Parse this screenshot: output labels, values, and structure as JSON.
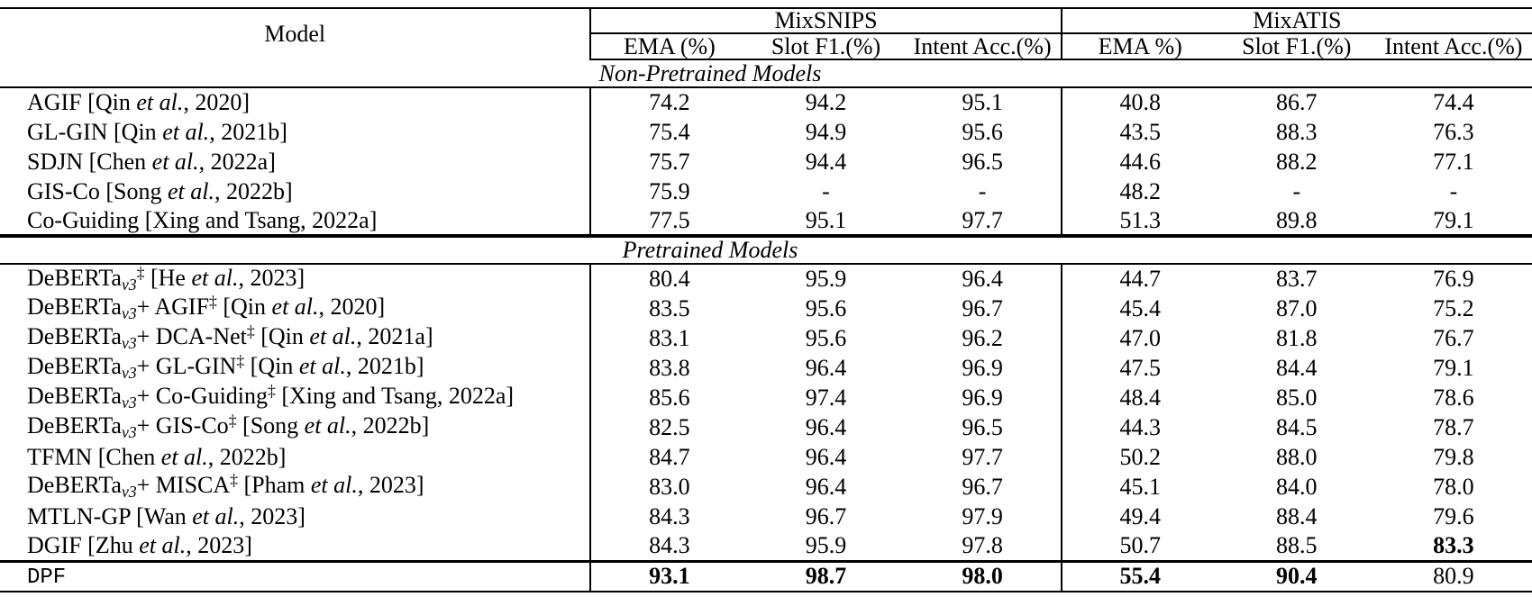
{
  "table": {
    "model_header": "Model",
    "groups": [
      {
        "label": "MixSNIPS",
        "columns": [
          "EMA (%)",
          "Slot F1.(%)",
          "Intent Acc.(%)"
        ]
      },
      {
        "label": "MixATIS",
        "columns": [
          "EMA %)",
          "Slot F1.(%)",
          "Intent Acc.(%)"
        ]
      }
    ],
    "sections": [
      {
        "title": "Non-Pretrained Models",
        "rows": [
          {
            "model": [
              {
                "t": "AGIF [Qin "
              },
              {
                "t": "et al.",
                "s": "i"
              },
              {
                "t": ", 2020]"
              }
            ],
            "values": [
              "74.2",
              "94.2",
              "95.1",
              "40.8",
              "86.7",
              "74.4"
            ],
            "bold": [
              false,
              false,
              false,
              false,
              false,
              false
            ]
          },
          {
            "model": [
              {
                "t": "GL-GIN [Qin "
              },
              {
                "t": "et al.",
                "s": "i"
              },
              {
                "t": ", 2021b]"
              }
            ],
            "values": [
              "75.4",
              "94.9",
              "95.6",
              "43.5",
              "88.3",
              "76.3"
            ],
            "bold": [
              false,
              false,
              false,
              false,
              false,
              false
            ]
          },
          {
            "model": [
              {
                "t": "SDJN [Chen "
              },
              {
                "t": "et al.",
                "s": "i"
              },
              {
                "t": ", 2022a]"
              }
            ],
            "values": [
              "75.7",
              "94.4",
              "96.5",
              "44.6",
              "88.2",
              "77.1"
            ],
            "bold": [
              false,
              false,
              false,
              false,
              false,
              false
            ]
          },
          {
            "model": [
              {
                "t": "GIS-Co [Song "
              },
              {
                "t": "et al.",
                "s": "i"
              },
              {
                "t": ", 2022b]"
              }
            ],
            "values": [
              "75.9",
              "-",
              "-",
              "48.2",
              "-",
              "-"
            ],
            "bold": [
              false,
              false,
              false,
              false,
              false,
              false
            ]
          },
          {
            "model": [
              {
                "t": "Co-Guiding [Xing and Tsang, 2022a]"
              }
            ],
            "values": [
              "77.5",
              "95.1",
              "97.7",
              "51.3",
              "89.8",
              "79.1"
            ],
            "bold": [
              false,
              false,
              false,
              false,
              false,
              false
            ]
          }
        ]
      },
      {
        "title": "Pretrained Models",
        "rows": [
          {
            "model": [
              {
                "t": "DeBERTa"
              },
              {
                "t": "v3",
                "s": "sub"
              },
              {
                "t": "‡",
                "s": "sup"
              },
              {
                "t": " [He "
              },
              {
                "t": "et al.",
                "s": "i"
              },
              {
                "t": ", 2023]"
              }
            ],
            "values": [
              "80.4",
              "95.9",
              "96.4",
              "44.7",
              "83.7",
              "76.9"
            ],
            "bold": [
              false,
              false,
              false,
              false,
              false,
              false
            ]
          },
          {
            "model": [
              {
                "t": "DeBERTa"
              },
              {
                "t": "v3",
                "s": "sub"
              },
              {
                "t": "+ AGIF"
              },
              {
                "t": "‡",
                "s": "sup"
              },
              {
                "t": " [Qin "
              },
              {
                "t": "et al.",
                "s": "i"
              },
              {
                "t": ", 2020]"
              }
            ],
            "values": [
              "83.5",
              "95.6",
              "96.7",
              "45.4",
              "87.0",
              "75.2"
            ],
            "bold": [
              false,
              false,
              false,
              false,
              false,
              false
            ]
          },
          {
            "model": [
              {
                "t": "DeBERTa"
              },
              {
                "t": "v3",
                "s": "sub"
              },
              {
                "t": "+ DCA-Net"
              },
              {
                "t": "‡",
                "s": "sup"
              },
              {
                "t": " [Qin "
              },
              {
                "t": "et al.",
                "s": "i"
              },
              {
                "t": ", 2021a]"
              }
            ],
            "values": [
              "83.1",
              "95.6",
              "96.2",
              "47.0",
              "81.8",
              "76.7"
            ],
            "bold": [
              false,
              false,
              false,
              false,
              false,
              false
            ]
          },
          {
            "model": [
              {
                "t": "DeBERTa"
              },
              {
                "t": "v3",
                "s": "sub"
              },
              {
                "t": "+ GL-GIN"
              },
              {
                "t": "‡",
                "s": "sup"
              },
              {
                "t": " [Qin "
              },
              {
                "t": "et al.",
                "s": "i"
              },
              {
                "t": ", 2021b]"
              }
            ],
            "values": [
              "83.8",
              "96.4",
              "96.9",
              "47.5",
              "84.4",
              "79.1"
            ],
            "bold": [
              false,
              false,
              false,
              false,
              false,
              false
            ]
          },
          {
            "model": [
              {
                "t": "DeBERTa"
              },
              {
                "t": "v3",
                "s": "sub"
              },
              {
                "t": "+ Co-Guiding"
              },
              {
                "t": "‡",
                "s": "sup"
              },
              {
                "t": " [Xing and Tsang, 2022a]"
              }
            ],
            "values": [
              "85.6",
              "97.4",
              "96.9",
              "48.4",
              "85.0",
              "78.6"
            ],
            "bold": [
              false,
              false,
              false,
              false,
              false,
              false
            ]
          },
          {
            "model": [
              {
                "t": "DeBERTa"
              },
              {
                "t": "v3",
                "s": "sub"
              },
              {
                "t": "+ GIS-Co"
              },
              {
                "t": "‡",
                "s": "sup"
              },
              {
                "t": " [Song "
              },
              {
                "t": "et al.",
                "s": "i"
              },
              {
                "t": ", 2022b]"
              }
            ],
            "values": [
              "82.5",
              "96.4",
              "96.5",
              "44.3",
              "84.5",
              "78.7"
            ],
            "bold": [
              false,
              false,
              false,
              false,
              false,
              false
            ]
          },
          {
            "model": [
              {
                "t": "TFMN [Chen "
              },
              {
                "t": "et al.",
                "s": "i"
              },
              {
                "t": ", 2022b]"
              }
            ],
            "values": [
              "84.7",
              "96.4",
              "97.7",
              "50.2",
              "88.0",
              "79.8"
            ],
            "bold": [
              false,
              false,
              false,
              false,
              false,
              false
            ]
          },
          {
            "model": [
              {
                "t": "DeBERTa"
              },
              {
                "t": "v3",
                "s": "sub"
              },
              {
                "t": "+ MISCA"
              },
              {
                "t": "‡",
                "s": "sup"
              },
              {
                "t": " [Pham "
              },
              {
                "t": "et al.",
                "s": "i"
              },
              {
                "t": ", 2023]"
              }
            ],
            "values": [
              "83.0",
              "96.4",
              "96.7",
              "45.1",
              "84.0",
              "78.0"
            ],
            "bold": [
              false,
              false,
              false,
              false,
              false,
              false
            ]
          },
          {
            "model": [
              {
                "t": "MTLN-GP [Wan "
              },
              {
                "t": "et al.",
                "s": "i"
              },
              {
                "t": ", 2023]"
              }
            ],
            "values": [
              "84.3",
              "96.7",
              "97.9",
              "49.4",
              "88.4",
              "79.6"
            ],
            "bold": [
              false,
              false,
              false,
              false,
              false,
              false
            ]
          },
          {
            "model": [
              {
                "t": "DGIF [Zhu "
              },
              {
                "t": "et al.",
                "s": "i"
              },
              {
                "t": ", 2023]"
              }
            ],
            "values": [
              "84.3",
              "95.9",
              "97.8",
              "50.7",
              "88.5",
              "83.3"
            ],
            "bold": [
              false,
              false,
              false,
              false,
              false,
              true
            ]
          }
        ]
      }
    ],
    "final_row": {
      "model": [
        {
          "t": "DPF",
          "s": "mono"
        }
      ],
      "values": [
        "93.1",
        "98.7",
        "98.0",
        "55.4",
        "90.4",
        "80.9"
      ],
      "bold": [
        true,
        true,
        true,
        true,
        true,
        false
      ]
    }
  }
}
